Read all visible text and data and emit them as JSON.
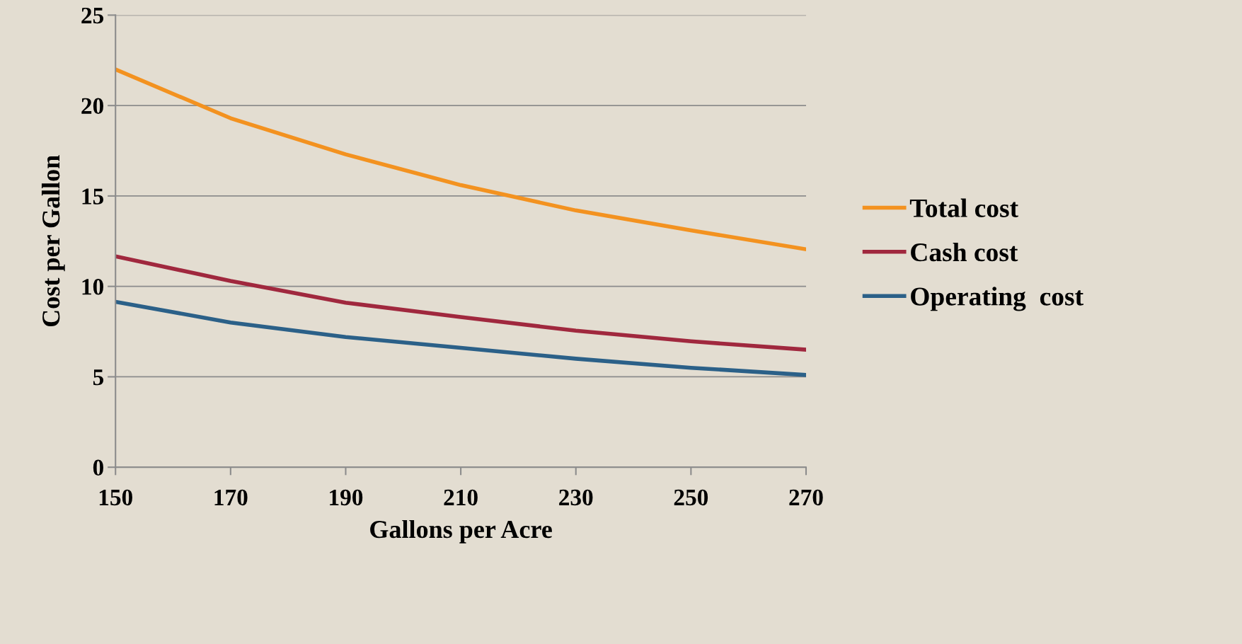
{
  "chart_data": {
    "type": "line",
    "xlabel": "Gallons per Acre",
    "ylabel": "Cost per Gallon",
    "x": [
      150,
      170,
      190,
      210,
      230,
      250,
      270
    ],
    "series": [
      {
        "name": "Total cost",
        "color": "#f39220",
        "values": [
          22.0,
          19.3,
          17.3,
          15.6,
          14.2,
          13.1,
          12.05
        ]
      },
      {
        "name": "Cash cost",
        "color": "#a0283e",
        "values": [
          11.66,
          10.3,
          9.1,
          8.3,
          7.55,
          6.96,
          6.5
        ]
      },
      {
        "name": "Operating  cost",
        "color": "#2b6088",
        "values": [
          9.15,
          8.0,
          7.2,
          6.6,
          6.0,
          5.5,
          5.1
        ]
      }
    ],
    "xlim": [
      150,
      270
    ],
    "xticks": [
      150,
      170,
      190,
      210,
      230,
      250,
      270
    ],
    "ylim": [
      0,
      25
    ],
    "yticks": [
      0,
      5,
      10,
      15,
      20,
      25
    ],
    "grid": "y",
    "legend": "right",
    "marker": "none",
    "line_style": "solid"
  }
}
